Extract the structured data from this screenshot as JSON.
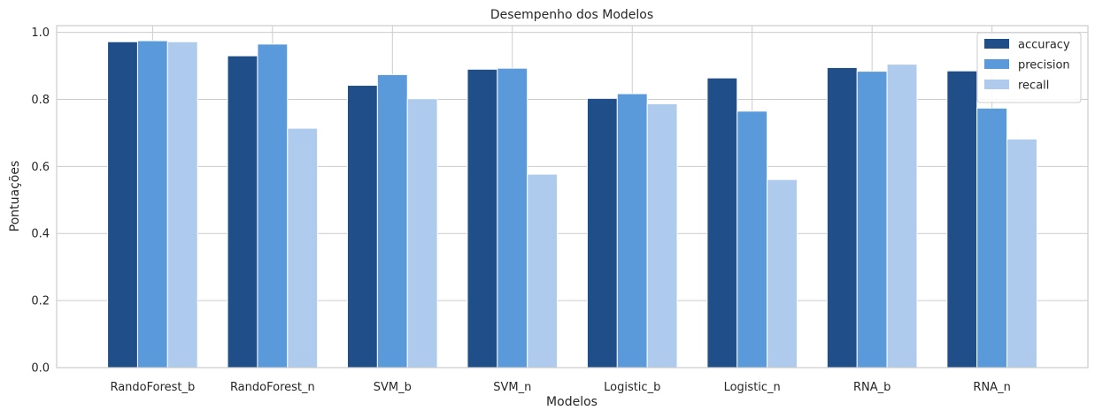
{
  "chart_data": {
    "type": "bar",
    "title": "Desempenho dos Modelos",
    "xlabel": "Modelos",
    "ylabel": "Pontuações",
    "ylim": [
      0,
      1.02
    ],
    "yticks": [
      "0.0",
      "0.2",
      "0.4",
      "0.6",
      "0.8",
      "1.0"
    ],
    "categories": [
      "RandoForest_b",
      "RandoForest_n",
      "SVM_b",
      "SVM_n",
      "Logistic_b",
      "Logistic_n",
      "RNA_b",
      "RNA_n"
    ],
    "series": [
      {
        "name": "accuracy",
        "color": "#1f4e89",
        "values": [
          0.972,
          0.93,
          0.842,
          0.89,
          0.803,
          0.864,
          0.895,
          0.885
        ]
      },
      {
        "name": "precision",
        "color": "#5b9ada",
        "values": [
          0.975,
          0.965,
          0.874,
          0.893,
          0.817,
          0.765,
          0.884,
          0.774
        ]
      },
      {
        "name": "recall",
        "color": "#aecbee",
        "values": [
          0.972,
          0.714,
          0.802,
          0.577,
          0.787,
          0.561,
          0.905,
          0.682
        ]
      }
    ],
    "grid": true,
    "legend_position": "top-right"
  }
}
